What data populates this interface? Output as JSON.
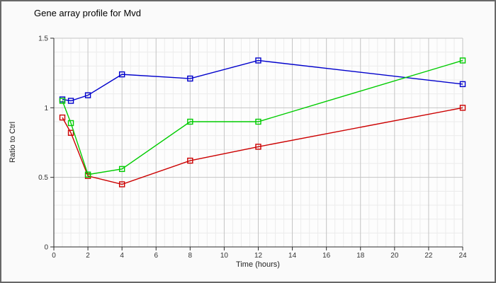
{
  "window": {
    "background": "#fafafa",
    "border_color": "#686868"
  },
  "chart_data": {
    "type": "line",
    "title": "Gene array profile for Mvd",
    "xlabel": "Time (hours)",
    "ylabel": "Ratio to Ctrl",
    "xlim": [
      0,
      24
    ],
    "ylim": [
      0,
      1.5
    ],
    "grid": true,
    "legend": "none",
    "marker": "open-square",
    "x": [
      0.5,
      1,
      2,
      4,
      8,
      12,
      24
    ],
    "series": [
      {
        "name": "red-series",
        "color": "#cc0000",
        "values": [
          0.93,
          0.82,
          0.51,
          0.45,
          0.62,
          0.72,
          1.0
        ]
      },
      {
        "name": "blue-series",
        "color": "#0000cc",
        "values": [
          1.06,
          1.05,
          1.09,
          1.24,
          1.21,
          1.34,
          1.17
        ]
      },
      {
        "name": "green-series",
        "color": "#00cc00",
        "values": [
          1.05,
          0.89,
          0.52,
          0.56,
          0.9,
          0.9,
          1.34
        ]
      }
    ],
    "xticks": {
      "values": [
        0,
        2,
        4,
        6,
        8,
        10,
        12,
        14,
        16,
        18,
        20,
        22,
        24
      ],
      "labels": [
        "0",
        "2",
        "4",
        "6",
        "8",
        "10",
        "12",
        "14",
        "16",
        "18",
        "20",
        "22",
        "24"
      ]
    },
    "yticks": {
      "values": [
        0,
        0.5,
        1,
        1.5
      ],
      "labels": [
        "0",
        "0.5",
        "1",
        "1.5"
      ]
    },
    "minor_x_step": 0.5,
    "minor_y_step": 0.1,
    "colors": {
      "plot_background": "#fdfdfd",
      "grid_major": "#c4c4c4",
      "grid_minor": "#ececec",
      "axis": "#2b2b2b",
      "tick_label": "#333333"
    }
  }
}
